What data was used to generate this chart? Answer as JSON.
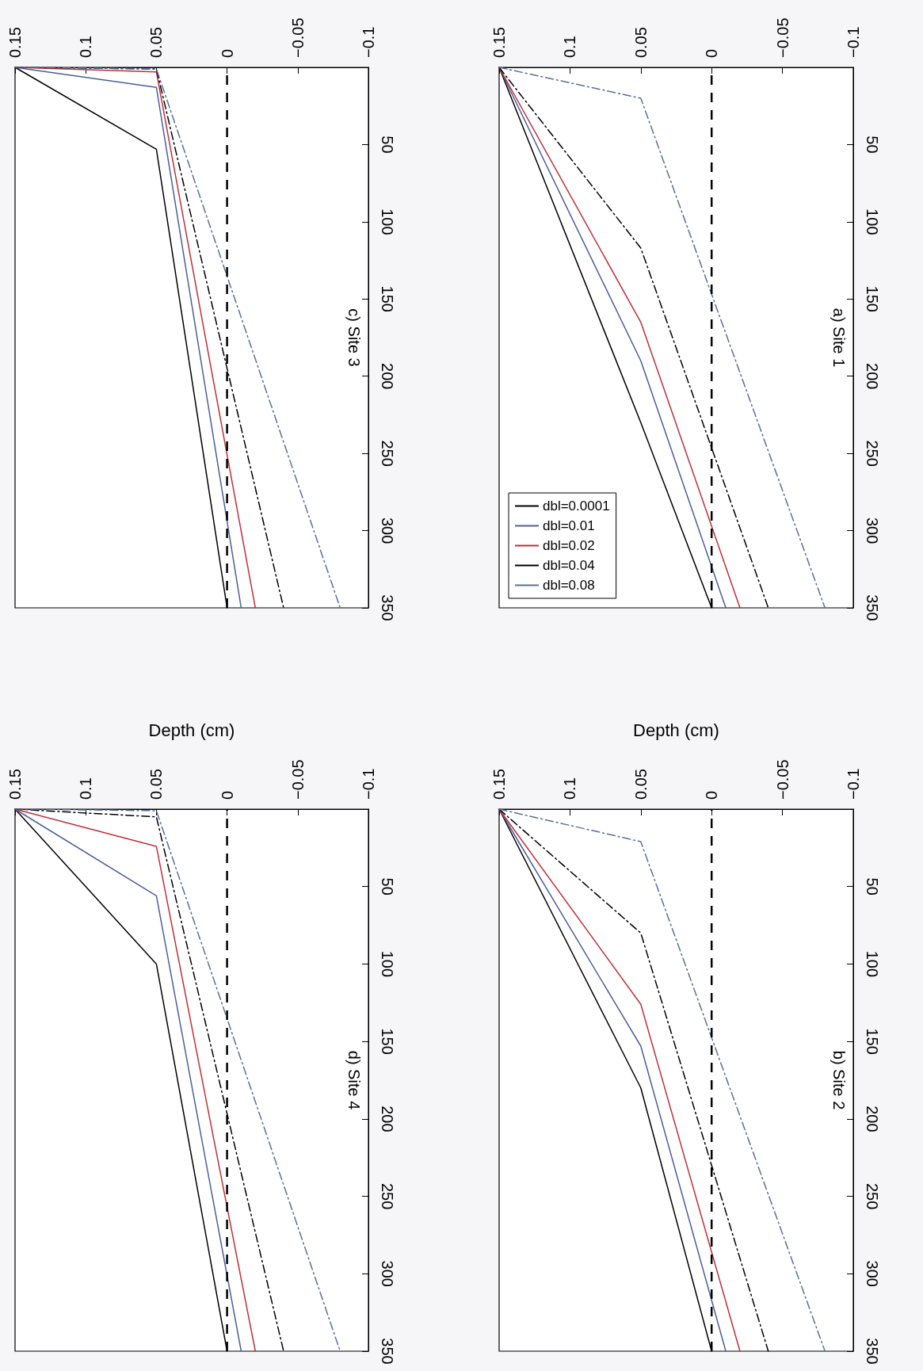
{
  "chart_data": [
    {
      "type": "line",
      "title": "a) Site 1",
      "xlim": [
        0.15,
        -0.1
      ],
      "xticks": [
        {
          "value": 0.15,
          "label": "0.15"
        },
        {
          "value": 0.1,
          "label": "0.1"
        },
        {
          "value": 0.05,
          "label": "0.05"
        },
        {
          "value": 0,
          "label": "0"
        },
        {
          "value": -0.05,
          "label": "−0.05"
        },
        {
          "value": -0.1,
          "label": "−0.1"
        }
      ],
      "ylim": [
        350,
        0
      ],
      "yticks": [
        50,
        100,
        150,
        200,
        250,
        300,
        350
      ],
      "grid": false,
      "legend": "bottom left",
      "marker": "none",
      "ref_lines": [
        {
          "axis": "x",
          "value": 0,
          "color": "#000000",
          "line_style": "dashed"
        }
      ],
      "series": [
        {
          "name": "dbl=0.0001",
          "color": "#000000",
          "line_style": "solid",
          "x": [
            0.15,
            0.05,
            0
          ],
          "values": [
            0,
            230,
            350
          ]
        },
        {
          "name": "dbl=0.01",
          "color": "#4b5e9c",
          "line_style": "solid",
          "x": [
            0.15,
            0.05,
            -0.01
          ],
          "values": [
            0,
            190,
            350
          ]
        },
        {
          "name": "dbl=0.02",
          "color": "#c0303a",
          "line_style": "solid",
          "x": [
            0.15,
            0.05,
            -0.02
          ],
          "values": [
            0,
            165,
            350
          ]
        },
        {
          "name": "dbl=0.04",
          "color": "#000000",
          "line_style": "dashed",
          "x": [
            0.15,
            0.05,
            -0.04
          ],
          "values": [
            0,
            117,
            350
          ]
        },
        {
          "name": "dbl=0.08",
          "color": "#5a6f9a",
          "line_style": "dashed",
          "x": [
            0.15,
            0.05,
            -0.08
          ],
          "values": [
            0,
            20,
            350
          ]
        }
      ]
    },
    {
      "type": "line",
      "title": "b) Site 2",
      "ylabel": "Depth (cm)",
      "xlim": [
        0.15,
        -0.1
      ],
      "xticks": [
        {
          "value": 0.15,
          "label": "0.15"
        },
        {
          "value": 0.1,
          "label": "0.1"
        },
        {
          "value": 0.05,
          "label": "0.05"
        },
        {
          "value": 0,
          "label": "0"
        },
        {
          "value": -0.05,
          "label": "−0.05"
        },
        {
          "value": -0.1,
          "label": "−0.1"
        }
      ],
      "ylim": [
        350,
        0
      ],
      "yticks": [
        50,
        100,
        150,
        200,
        250,
        300,
        350
      ],
      "grid": false,
      "legend": false,
      "marker": "none",
      "ref_lines": [
        {
          "axis": "x",
          "value": 0,
          "color": "#000000",
          "line_style": "dashed"
        }
      ],
      "series": [
        {
          "color": "#000000",
          "line_style": "solid",
          "x": [
            0.15,
            0.05,
            0
          ],
          "values": [
            0,
            180,
            350
          ]
        },
        {
          "color": "#4b5e9c",
          "line_style": "solid",
          "x": [
            0.15,
            0.05,
            -0.01
          ],
          "values": [
            0,
            153,
            350
          ]
        },
        {
          "color": "#c0303a",
          "line_style": "solid",
          "x": [
            0.15,
            0.05,
            -0.02
          ],
          "values": [
            0,
            126,
            350
          ]
        },
        {
          "color": "#000000",
          "line_style": "dashed",
          "x": [
            0.15,
            0.05,
            -0.04
          ],
          "values": [
            0,
            80,
            350
          ]
        },
        {
          "color": "#5a6f9a",
          "line_style": "dashed",
          "x": [
            0.15,
            0.05,
            -0.08
          ],
          "values": [
            0,
            21,
            350
          ]
        }
      ]
    },
    {
      "type": "line",
      "title": "c) Site 3",
      "xlim": [
        0.15,
        -0.1
      ],
      "xticks": [
        {
          "value": 0.15,
          "label": "0.15"
        },
        {
          "value": 0.1,
          "label": "0.1"
        },
        {
          "value": 0.05,
          "label": "0.05"
        },
        {
          "value": 0,
          "label": "0"
        },
        {
          "value": -0.05,
          "label": "−0.05"
        },
        {
          "value": -0.1,
          "label": "−0.1"
        }
      ],
      "ylim": [
        350,
        0
      ],
      "yticks": [
        50,
        100,
        150,
        200,
        250,
        300,
        350
      ],
      "grid": false,
      "legend": false,
      "marker": "none",
      "ref_lines": [
        {
          "axis": "x",
          "value": 0,
          "color": "#000000",
          "line_style": "dashed"
        }
      ],
      "series": [
        {
          "color": "#000000",
          "line_style": "solid",
          "x": [
            0.15,
            0.05,
            0
          ],
          "values": [
            0,
            53,
            350
          ]
        },
        {
          "color": "#4b5e9c",
          "line_style": "solid",
          "x": [
            0.15,
            0.05,
            -0.01
          ],
          "values": [
            0,
            13,
            350
          ]
        },
        {
          "color": "#c0303a",
          "line_style": "solid",
          "x": [
            0.15,
            0.05,
            -0.02
          ],
          "values": [
            0,
            3,
            350
          ]
        },
        {
          "color": "#000000",
          "line_style": "dashed",
          "x": [
            0.15,
            0.05,
            -0.04
          ],
          "values": [
            0,
            1,
            350
          ]
        },
        {
          "color": "#5a6f9a",
          "line_style": "dashed",
          "x": [
            0.15,
            0.05,
            -0.08
          ],
          "values": [
            0,
            1,
            350
          ]
        }
      ]
    },
    {
      "type": "line",
      "title": "d) Site 4",
      "ylabel": "Depth (cm)",
      "xlim": [
        0.15,
        -0.1
      ],
      "xticks": [
        {
          "value": 0.15,
          "label": "0.15"
        },
        {
          "value": 0.1,
          "label": "0.1"
        },
        {
          "value": 0.05,
          "label": "0.05"
        },
        {
          "value": 0,
          "label": "0"
        },
        {
          "value": -0.05,
          "label": "−0.05"
        },
        {
          "value": -0.1,
          "label": "−0.1"
        }
      ],
      "ylim": [
        350,
        0
      ],
      "yticks": [
        50,
        100,
        150,
        200,
        250,
        300,
        350
      ],
      "grid": false,
      "legend": false,
      "marker": "none",
      "ref_lines": [
        {
          "axis": "x",
          "value": 0,
          "color": "#000000",
          "line_style": "dashed"
        }
      ],
      "series": [
        {
          "color": "#000000",
          "line_style": "solid",
          "x": [
            0.15,
            0.05,
            0
          ],
          "values": [
            0,
            100,
            350
          ]
        },
        {
          "color": "#4b5e9c",
          "line_style": "solid",
          "x": [
            0.15,
            0.05,
            -0.01
          ],
          "values": [
            0,
            56,
            350
          ]
        },
        {
          "color": "#c0303a",
          "line_style": "solid",
          "x": [
            0.15,
            0.05,
            -0.02
          ],
          "values": [
            0,
            24,
            350
          ]
        },
        {
          "color": "#000000",
          "line_style": "dashed",
          "x": [
            0.15,
            0.05,
            -0.04
          ],
          "values": [
            0,
            5,
            350
          ]
        },
        {
          "color": "#5a6f9a",
          "line_style": "dashed",
          "x": [
            0.15,
            0.05,
            -0.08
          ],
          "values": [
            0,
            1,
            350
          ]
        }
      ]
    }
  ]
}
